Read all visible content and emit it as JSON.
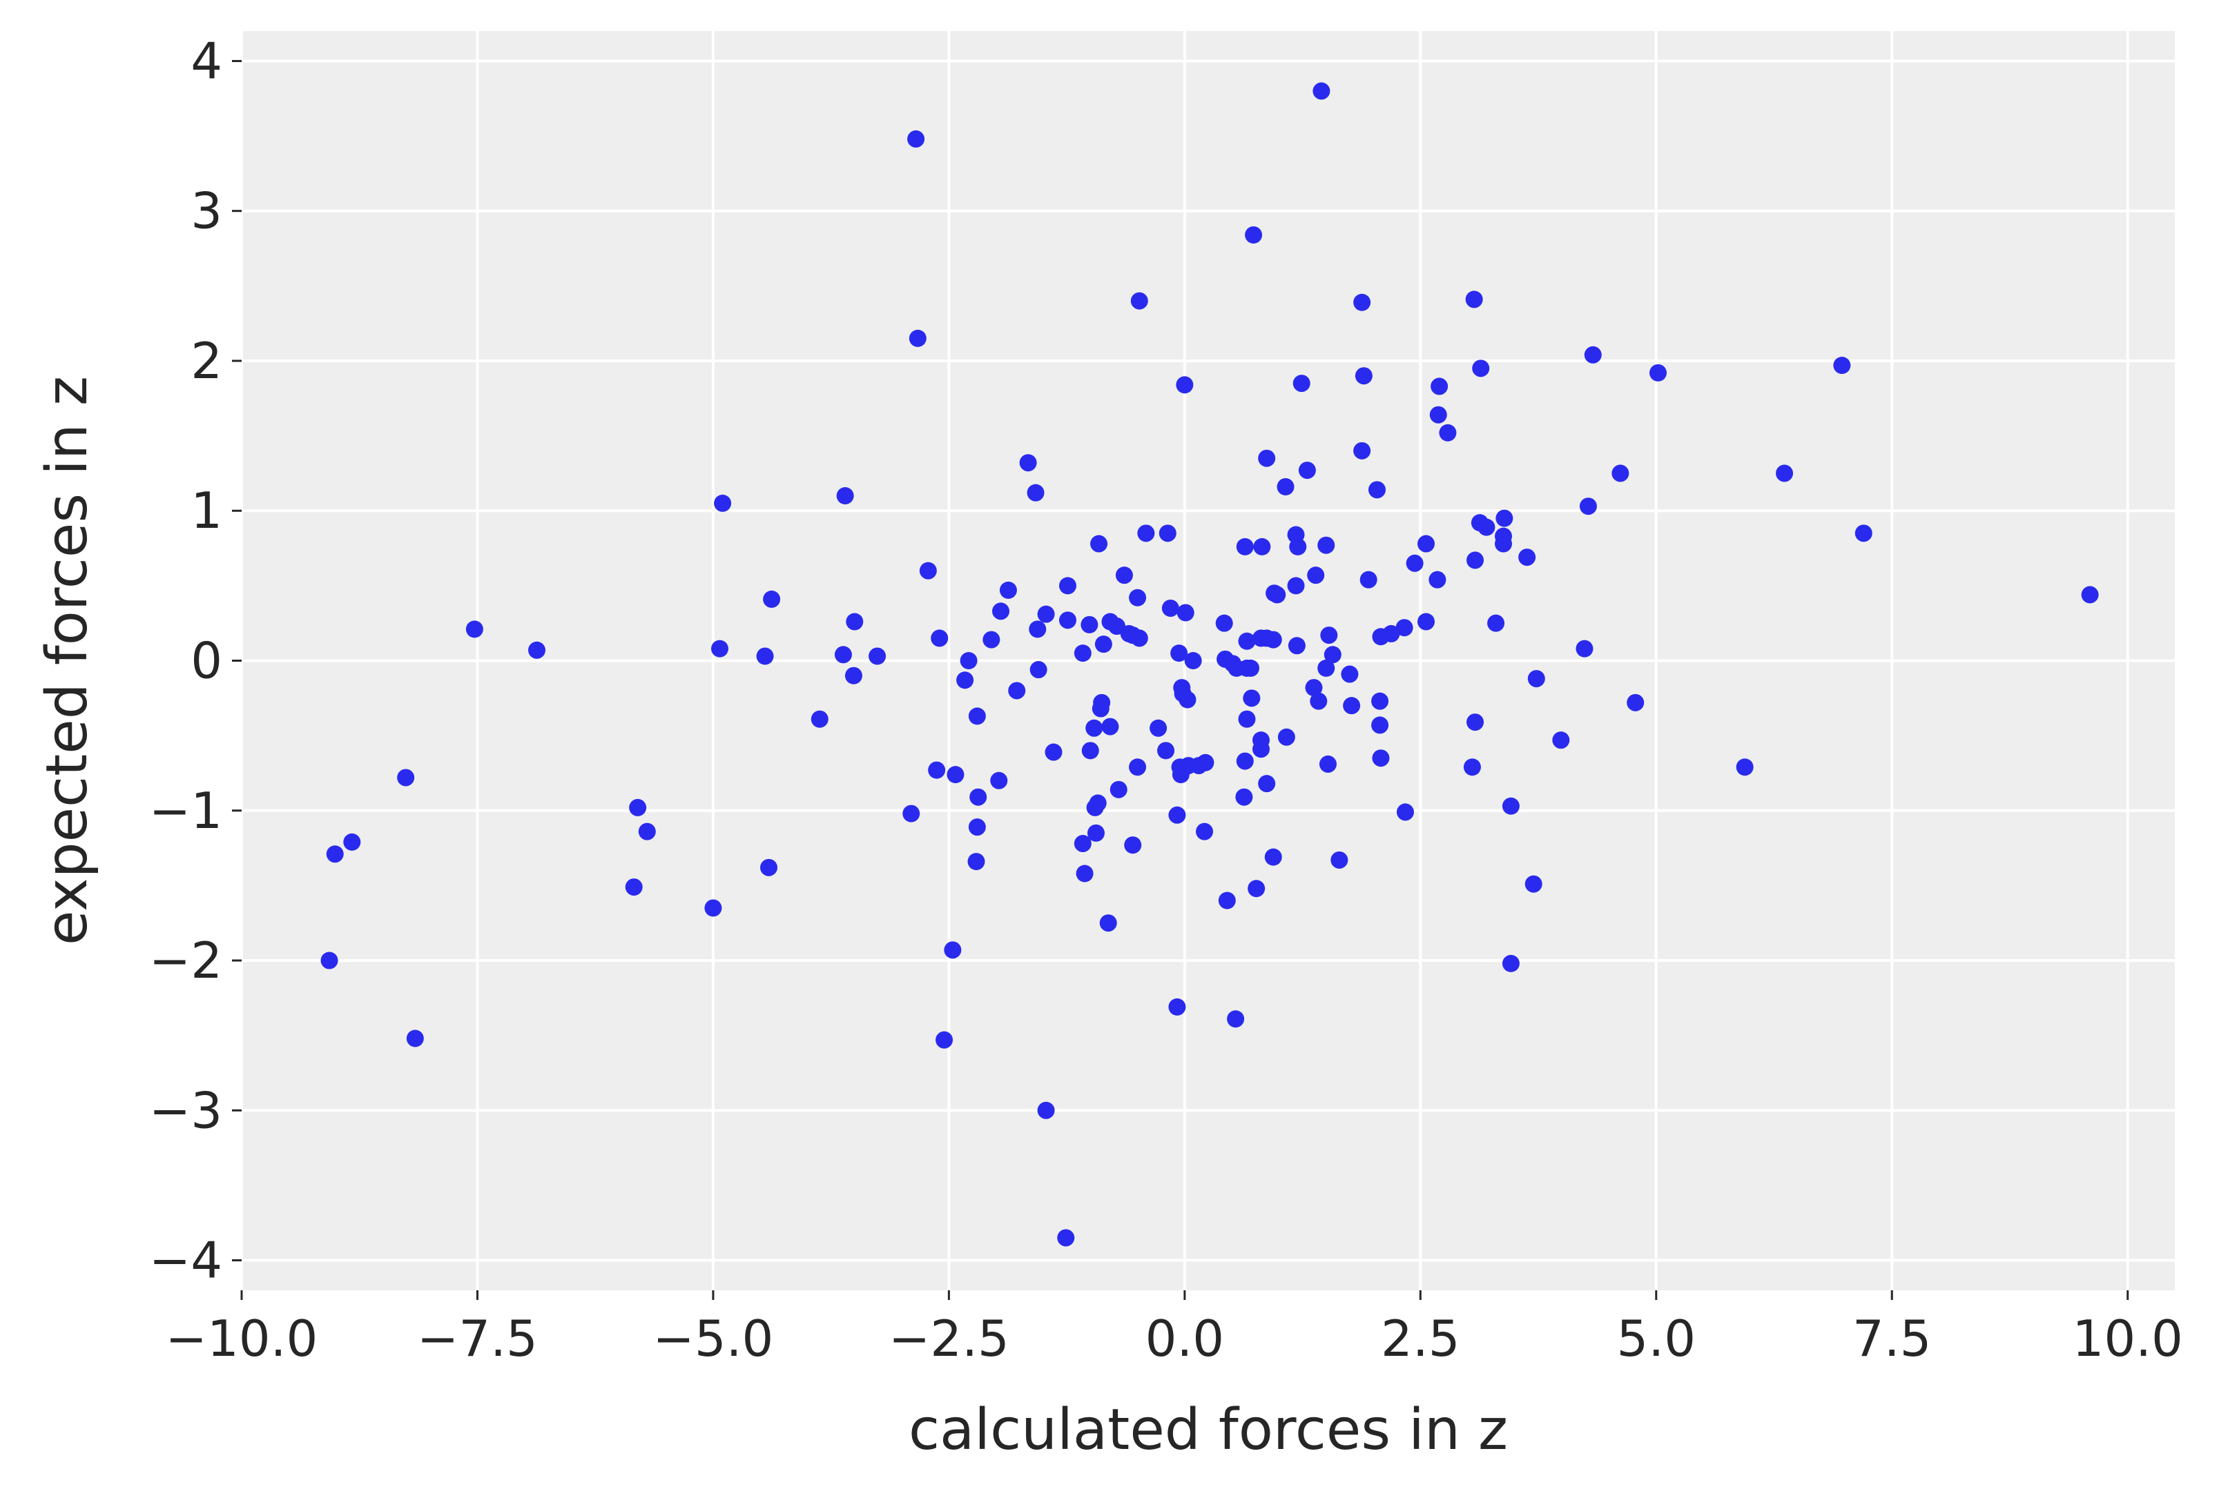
{
  "chart_data": {
    "type": "scatter",
    "title": "",
    "xlabel": "calculated forces in z",
    "ylabel": "expected forces in z",
    "xlim": [
      -10,
      10.5
    ],
    "ylim": [
      -4.2,
      4.2
    ],
    "xticks": [
      -10.0,
      -7.5,
      -5.0,
      -2.5,
      0.0,
      2.5,
      5.0,
      7.5,
      10.0
    ],
    "xtick_labels": [
      "−10.0",
      "−7.5",
      "−5.0",
      "−2.5",
      "0.0",
      "2.5",
      "5.0",
      "7.5",
      "10.0"
    ],
    "yticks": [
      -4,
      -3,
      -2,
      -1,
      0,
      1,
      2,
      3,
      4
    ],
    "ytick_labels": [
      "−4",
      "−3",
      "−2",
      "−1",
      "0",
      "1",
      "2",
      "3",
      "4"
    ],
    "grid": true,
    "colors": {
      "background": "#eeeeee",
      "grid": "#ffffff",
      "marker": "#2a2aee",
      "text": "#262626"
    },
    "points": [
      [
        1.45,
        3.8
      ],
      [
        -2.85,
        3.48
      ],
      [
        0.73,
        2.84
      ],
      [
        -0.48,
        2.4
      ],
      [
        1.88,
        2.39
      ],
      [
        3.07,
        2.41
      ],
      [
        -2.83,
        2.15
      ],
      [
        0.0,
        1.84
      ],
      [
        1.24,
        1.85
      ],
      [
        1.9,
        1.9
      ],
      [
        2.7,
        1.83
      ],
      [
        3.14,
        1.95
      ],
      [
        4.33,
        2.04
      ],
      [
        5.02,
        1.92
      ],
      [
        6.97,
        1.97
      ],
      [
        2.69,
        1.64
      ],
      [
        2.79,
        1.52
      ],
      [
        0.87,
        1.35
      ],
      [
        1.88,
        1.4
      ],
      [
        -1.66,
        1.32
      ],
      [
        -1.58,
        1.12
      ],
      [
        -3.6,
        1.1
      ],
      [
        -4.9,
        1.05
      ],
      [
        1.3,
        1.27
      ],
      [
        1.07,
        1.16
      ],
      [
        2.04,
        1.14
      ],
      [
        4.62,
        1.25
      ],
      [
        6.36,
        1.25
      ],
      [
        4.28,
        1.03
      ],
      [
        3.13,
        0.92
      ],
      [
        3.2,
        0.89
      ],
      [
        3.39,
        0.95
      ],
      [
        3.38,
        0.83
      ],
      [
        3.38,
        0.78
      ],
      [
        7.2,
        0.85
      ],
      [
        -0.41,
        0.85
      ],
      [
        -0.18,
        0.85
      ],
      [
        1.18,
        0.84
      ],
      [
        -0.91,
        0.78
      ],
      [
        0.64,
        0.76
      ],
      [
        0.82,
        0.76
      ],
      [
        1.2,
        0.76
      ],
      [
        1.5,
        0.77
      ],
      [
        2.56,
        0.78
      ],
      [
        3.08,
        0.67
      ],
      [
        3.63,
        0.69
      ],
      [
        2.44,
        0.65
      ],
      [
        1.39,
        0.57
      ],
      [
        1.95,
        0.54
      ],
      [
        2.68,
        0.54
      ],
      [
        -2.72,
        0.6
      ],
      [
        -0.64,
        0.57
      ],
      [
        -1.24,
        0.5
      ],
      [
        1.18,
        0.5
      ],
      [
        -1.87,
        0.47
      ],
      [
        0.95,
        0.45
      ],
      [
        0.98,
        0.44
      ],
      [
        -4.38,
        0.41
      ],
      [
        -0.5,
        0.42
      ],
      [
        9.6,
        0.44
      ],
      [
        -1.95,
        0.33
      ],
      [
        -1.47,
        0.31
      ],
      [
        -0.15,
        0.35
      ],
      [
        0.01,
        0.32
      ],
      [
        -3.5,
        0.26
      ],
      [
        -1.24,
        0.27
      ],
      [
        -1.01,
        0.24
      ],
      [
        -0.79,
        0.26
      ],
      [
        -0.72,
        0.23
      ],
      [
        -0.59,
        0.18
      ],
      [
        -1.56,
        0.21
      ],
      [
        0.42,
        0.25
      ],
      [
        2.33,
        0.22
      ],
      [
        2.56,
        0.26
      ],
      [
        3.3,
        0.25
      ],
      [
        -7.53,
        0.21
      ],
      [
        -2.05,
        0.14
      ],
      [
        -2.6,
        0.15
      ],
      [
        -0.86,
        0.11
      ],
      [
        -0.55,
        0.17
      ],
      [
        -0.48,
        0.15
      ],
      [
        0.66,
        0.13
      ],
      [
        0.81,
        0.15
      ],
      [
        0.87,
        0.15
      ],
      [
        0.94,
        0.14
      ],
      [
        1.53,
        0.17
      ],
      [
        2.08,
        0.16
      ],
      [
        2.19,
        0.18
      ],
      [
        -6.87,
        0.07
      ],
      [
        -4.93,
        0.08
      ],
      [
        -4.45,
        0.03
      ],
      [
        -3.62,
        0.04
      ],
      [
        -3.26,
        0.03
      ],
      [
        -2.29,
        0.0
      ],
      [
        -1.08,
        0.05
      ],
      [
        -0.06,
        0.05
      ],
      [
        0.09,
        0.0
      ],
      [
        0.43,
        0.01
      ],
      [
        0.51,
        -0.02
      ],
      [
        0.55,
        -0.05
      ],
      [
        0.66,
        -0.05
      ],
      [
        0.7,
        -0.05
      ],
      [
        1.19,
        0.1
      ],
      [
        1.57,
        0.04
      ],
      [
        1.5,
        -0.05
      ],
      [
        4.24,
        0.08
      ],
      [
        -3.51,
        -0.1
      ],
      [
        -1.55,
        -0.06
      ],
      [
        -2.33,
        -0.13
      ],
      [
        1.75,
        -0.09
      ],
      [
        3.73,
        -0.12
      ],
      [
        -1.78,
        -0.2
      ],
      [
        -0.03,
        -0.18
      ],
      [
        -0.02,
        -0.22
      ],
      [
        0.03,
        -0.26
      ],
      [
        0.71,
        -0.25
      ],
      [
        1.37,
        -0.18
      ],
      [
        1.42,
        -0.27
      ],
      [
        1.77,
        -0.3
      ],
      [
        2.07,
        -0.27
      ],
      [
        4.78,
        -0.28
      ],
      [
        -3.87,
        -0.39
      ],
      [
        -2.2,
        -0.37
      ],
      [
        -0.88,
        -0.28
      ],
      [
        -0.89,
        -0.32
      ],
      [
        -0.79,
        -0.44
      ],
      [
        -0.96,
        -0.45
      ],
      [
        -0.28,
        -0.45
      ],
      [
        0.66,
        -0.39
      ],
      [
        2.07,
        -0.43
      ],
      [
        3.08,
        -0.41
      ],
      [
        3.99,
        -0.53
      ],
      [
        -1.39,
        -0.61
      ],
      [
        -1.0,
        -0.6
      ],
      [
        -0.2,
        -0.6
      ],
      [
        0.64,
        -0.67
      ],
      [
        0.81,
        -0.53
      ],
      [
        0.81,
        -0.59
      ],
      [
        1.08,
        -0.51
      ],
      [
        2.08,
        -0.65
      ],
      [
        -2.63,
        -0.73
      ],
      [
        -2.43,
        -0.76
      ],
      [
        -0.5,
        -0.71
      ],
      [
        -0.05,
        -0.71
      ],
      [
        -0.04,
        -0.76
      ],
      [
        0.04,
        -0.7
      ],
      [
        0.15,
        -0.7
      ],
      [
        0.22,
        -0.68
      ],
      [
        1.52,
        -0.69
      ],
      [
        3.05,
        -0.71
      ],
      [
        5.94,
        -0.71
      ],
      [
        -1.97,
        -0.8
      ],
      [
        -0.7,
        -0.86
      ],
      [
        -8.26,
        -0.78
      ],
      [
        -5.8,
        -0.98
      ],
      [
        -2.19,
        -0.91
      ],
      [
        -0.92,
        -0.95
      ],
      [
        -0.95,
        -0.98
      ],
      [
        0.63,
        -0.91
      ],
      [
        0.87,
        -0.82
      ],
      [
        3.46,
        -0.97
      ],
      [
        -2.9,
        -1.02
      ],
      [
        -0.08,
        -1.03
      ],
      [
        2.34,
        -1.01
      ],
      [
        -5.7,
        -1.14
      ],
      [
        -2.2,
        -1.11
      ],
      [
        -0.94,
        -1.15
      ],
      [
        0.21,
        -1.14
      ],
      [
        -8.83,
        -1.21
      ],
      [
        -9.01,
        -1.29
      ],
      [
        -1.08,
        -1.22
      ],
      [
        -0.55,
        -1.23
      ],
      [
        -2.21,
        -1.34
      ],
      [
        -1.06,
        -1.42
      ],
      [
        0.94,
        -1.31
      ],
      [
        1.64,
        -1.33
      ],
      [
        -4.41,
        -1.38
      ],
      [
        -5.84,
        -1.51
      ],
      [
        0.76,
        -1.52
      ],
      [
        3.7,
        -1.49
      ],
      [
        -5.0,
        -1.65
      ],
      [
        -0.81,
        -1.75
      ],
      [
        0.45,
        -1.6
      ],
      [
        -9.07,
        -2.0
      ],
      [
        -2.46,
        -1.93
      ],
      [
        3.46,
        -2.02
      ],
      [
        -8.16,
        -2.52
      ],
      [
        -2.55,
        -2.53
      ],
      [
        -0.08,
        -2.31
      ],
      [
        0.54,
        -2.39
      ],
      [
        -1.47,
        -3.0
      ],
      [
        -1.26,
        -3.85
      ]
    ]
  }
}
